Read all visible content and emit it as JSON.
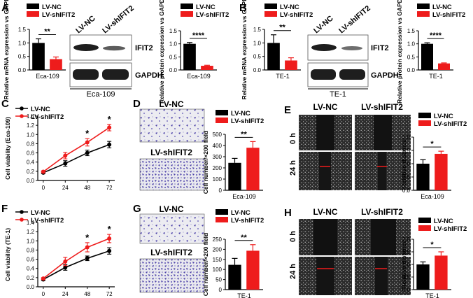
{
  "panel_letters": [
    "A",
    "B",
    "C",
    "D",
    "E",
    "F",
    "G",
    "H"
  ],
  "legend": {
    "nc": "LV-NC",
    "sh": "LV-shIFIT2"
  },
  "colors": {
    "nc": "#000000",
    "sh": "#ee1c1c",
    "blot": "#1e1e1e",
    "violet": "#4a3fa8"
  },
  "blot_labels": {
    "lane1": "LV-NC",
    "lane2": "LV-shIFIT2",
    "target": "IFIT2",
    "loading": "GAPDH"
  },
  "image_labels": {
    "nc": "LV-NC",
    "sh": "LV-shIFIT2",
    "t0": "0 h",
    "t24": "24 h"
  },
  "chart_data": [
    {
      "panel": "A",
      "type": "bar",
      "ylabel": "Relative mRNA expression vs GAPDH",
      "xlabel": "Eca-109",
      "series": [
        {
          "name": "LV-NC",
          "value": 1.0,
          "error": 0.15
        },
        {
          "name": "LV-shIFIT2",
          "value": 0.4,
          "error": 0.08
        }
      ],
      "ylim": [
        0,
        1.5
      ],
      "yticks": [
        0.0,
        0.5,
        1.0,
        1.5
      ],
      "significance": "**"
    },
    {
      "panel": "A",
      "type": "bar",
      "ylabel": "Relative protein expression vs GAPDH",
      "xlabel": "Eca-109",
      "series": [
        {
          "name": "LV-NC",
          "value": 1.0,
          "error": 0.05
        },
        {
          "name": "LV-shIFIT2",
          "value": 0.16,
          "error": 0.02
        }
      ],
      "ylim": [
        0,
        1.5
      ],
      "yticks": [
        0.0,
        0.5,
        1.0,
        1.5
      ],
      "significance": "****"
    },
    {
      "panel": "B",
      "type": "bar",
      "ylabel": "Relative mRNA expression vs GAPDH",
      "xlabel": "TE-1",
      "series": [
        {
          "name": "LV-NC",
          "value": 1.0,
          "error": 0.3
        },
        {
          "name": "LV-shIFIT2",
          "value": 0.35,
          "error": 0.1
        }
      ],
      "ylim": [
        0,
        1.5
      ],
      "yticks": [
        0.0,
        0.5,
        1.0,
        1.5
      ],
      "significance": "**"
    },
    {
      "panel": "B",
      "type": "bar",
      "ylabel": "Relative protein expression vs GAPDH",
      "xlabel": "TE-1",
      "series": [
        {
          "name": "LV-NC",
          "value": 1.0,
          "error": 0.04
        },
        {
          "name": "LV-shIFIT2",
          "value": 0.25,
          "error": 0.02
        }
      ],
      "ylim": [
        0,
        1.5
      ],
      "yticks": [
        0.0,
        0.5,
        1.0,
        1.5
      ],
      "significance": "****"
    },
    {
      "panel": "C",
      "type": "line",
      "ylabel": "Cell viability (Eca-109)",
      "xlabel": "",
      "x": [
        0,
        24,
        48,
        72
      ],
      "xlim": [
        -6,
        78
      ],
      "ylim": [
        0.0,
        1.4
      ],
      "yticks": [
        0.0,
        0.2,
        0.4,
        0.6,
        0.8,
        1.0,
        1.2,
        1.4
      ],
      "series": [
        {
          "name": "LV-NC",
          "values": [
            0.17,
            0.37,
            0.6,
            0.78
          ],
          "errors": [
            0.02,
            0.06,
            0.06,
            0.07
          ]
        },
        {
          "name": "LV-shIFIT2",
          "values": [
            0.19,
            0.54,
            0.83,
            1.15
          ],
          "errors": [
            0.02,
            0.07,
            0.08,
            0.07
          ]
        }
      ],
      "significance": [
        {
          "x": 48,
          "label": "*"
        },
        {
          "x": 72,
          "label": "*"
        }
      ]
    },
    {
      "panel": "D",
      "type": "bar",
      "ylabel": "Cell number/×200 field",
      "xlabel": "Eca-109",
      "series": [
        {
          "name": "LV-NC",
          "value": 245,
          "error": 40
        },
        {
          "name": "LV-shIFIT2",
          "value": 380,
          "error": 55
        }
      ],
      "ylim": [
        0,
        500
      ],
      "yticks": [
        0,
        100,
        200,
        300,
        400,
        500
      ],
      "significance": "**"
    },
    {
      "panel": "E",
      "type": "bar",
      "ylabel": "Relative distance",
      "xlabel": "Eca-109",
      "series": [
        {
          "name": "LV-NC",
          "value": 1.0,
          "error": 0.15
        },
        {
          "name": "LV-shIFIT2",
          "value": 1.37,
          "error": 0.1
        }
      ],
      "ylim": [
        0,
        2.0
      ],
      "yticks": [
        0.0,
        0.5,
        1.0,
        1.5,
        2.0
      ],
      "significance": "*"
    },
    {
      "panel": "F",
      "type": "line",
      "ylabel": "Cell viability (TE-1)",
      "xlabel": "",
      "x": [
        0,
        24,
        48,
        72
      ],
      "xlim": [
        -6,
        78
      ],
      "ylim": [
        0.0,
        1.4
      ],
      "yticks": [
        0.0,
        0.2,
        0.4,
        0.6,
        0.8,
        1.0,
        1.2,
        1.4
      ],
      "series": [
        {
          "name": "LV-NC",
          "values": [
            0.16,
            0.42,
            0.62,
            0.78
          ],
          "errors": [
            0.02,
            0.06,
            0.05,
            0.07
          ]
        },
        {
          "name": "LV-shIFIT2",
          "values": [
            0.18,
            0.55,
            0.86,
            1.05
          ],
          "errors": [
            0.02,
            0.09,
            0.1,
            0.09
          ]
        }
      ],
      "significance": [
        {
          "x": 48,
          "label": "*"
        },
        {
          "x": 72,
          "label": "*"
        }
      ]
    },
    {
      "panel": "G",
      "type": "bar",
      "ylabel": "Cell number/×200 field",
      "xlabel": "TE-1",
      "series": [
        {
          "name": "LV-NC",
          "value": 123,
          "error": 32
        },
        {
          "name": "LV-shIFIT2",
          "value": 193,
          "error": 30
        }
      ],
      "ylim": [
        0,
        250
      ],
      "yticks": [
        0,
        50,
        100,
        150,
        200,
        250
      ],
      "significance": "**"
    },
    {
      "panel": "H",
      "type": "bar",
      "ylabel": "Relative distance",
      "xlabel": "TE-1",
      "series": [
        {
          "name": "LV-NC",
          "value": 1.0,
          "error": 0.1
        },
        {
          "name": "LV-shIFIT2",
          "value": 1.35,
          "error": 0.15
        }
      ],
      "ylim": [
        0,
        2.0
      ],
      "yticks": [
        0.0,
        0.5,
        1.0,
        1.5,
        2.0
      ],
      "significance": "*"
    }
  ]
}
